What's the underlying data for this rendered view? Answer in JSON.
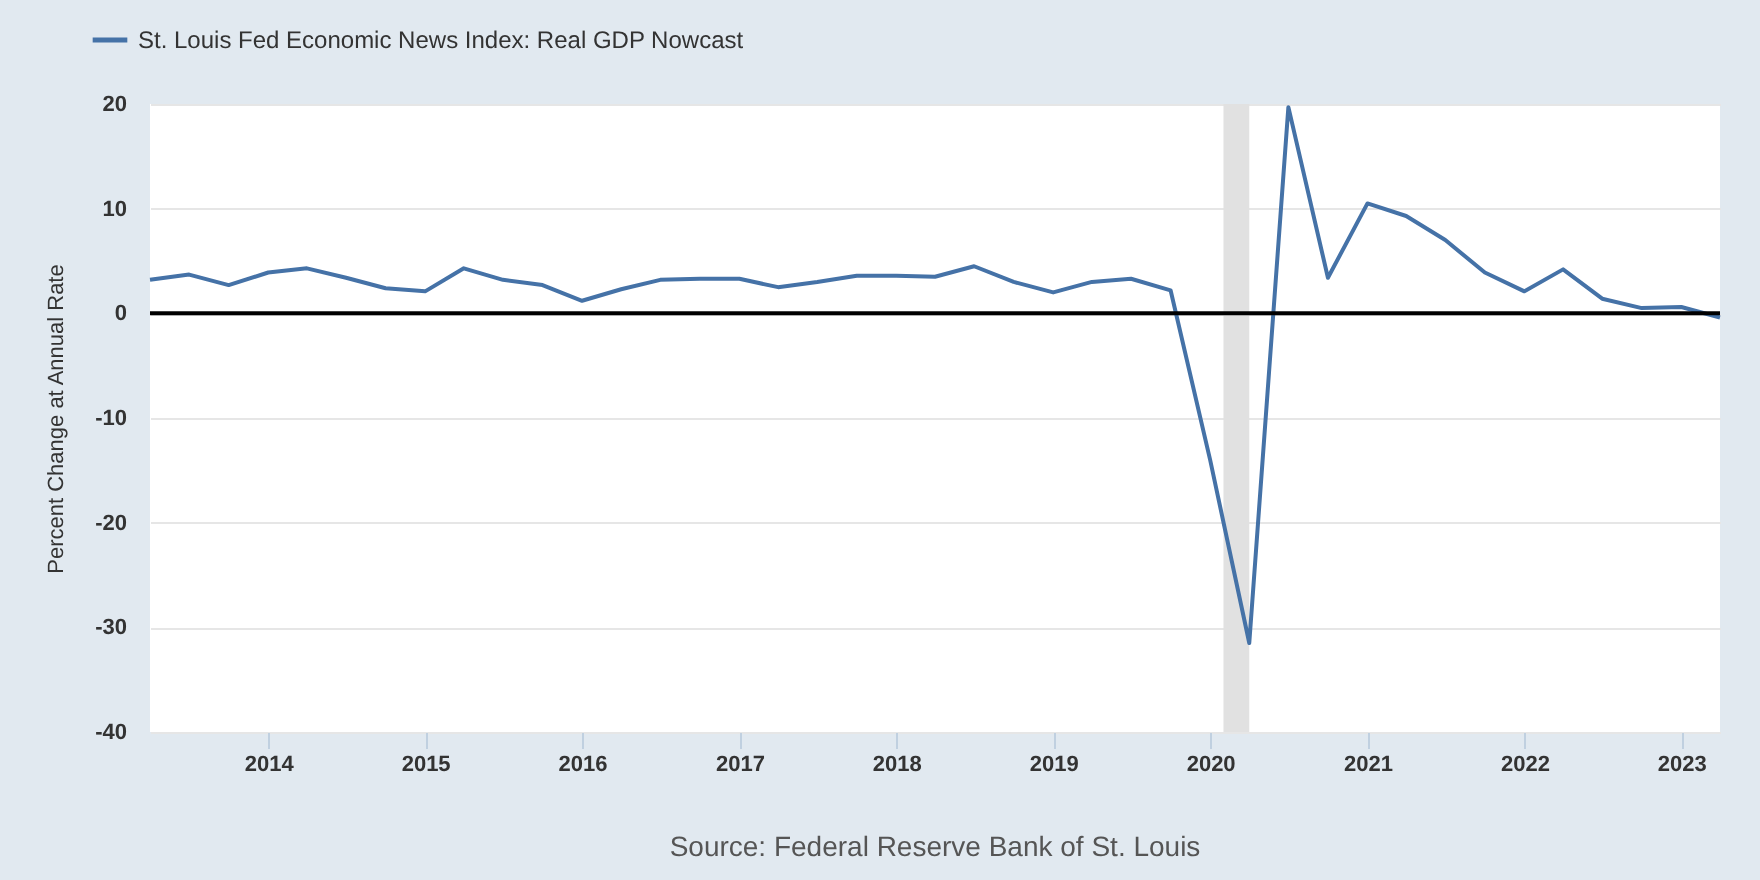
{
  "chart_data": {
    "type": "line",
    "ylabel": "Percent Change at Annual Rate",
    "x": [
      "2013-04-01",
      "2013-07-01",
      "2013-10-01",
      "2014-01-01",
      "2014-04-01",
      "2014-07-01",
      "2014-10-01",
      "2015-01-01",
      "2015-04-01",
      "2015-07-01",
      "2015-10-01",
      "2016-01-01",
      "2016-04-01",
      "2016-07-01",
      "2016-10-01",
      "2017-01-01",
      "2017-04-01",
      "2017-07-01",
      "2017-10-01",
      "2018-01-01",
      "2018-04-01",
      "2018-07-01",
      "2018-10-01",
      "2019-01-01",
      "2019-04-01",
      "2019-07-01",
      "2019-10-01",
      "2020-01-01",
      "2020-04-01",
      "2020-07-01",
      "2020-10-01",
      "2021-01-01",
      "2021-04-01",
      "2021-07-01",
      "2021-10-01",
      "2022-01-01",
      "2022-04-01",
      "2022-07-01",
      "2022-10-01",
      "2023-01-01",
      "2023-04-01"
    ],
    "series": [
      {
        "name": "St. Louis Fed Economic News Index: Real GDP Nowcast",
        "color": "#4572a7",
        "values": [
          3.2,
          3.7,
          2.7,
          3.9,
          4.3,
          3.4,
          2.4,
          2.1,
          4.3,
          3.2,
          2.7,
          1.2,
          2.3,
          3.2,
          3.3,
          3.3,
          2.5,
          3.0,
          3.6,
          3.6,
          3.5,
          4.5,
          3.0,
          2.0,
          3.0,
          3.3,
          2.2,
          -14,
          -31.5,
          19.7,
          3.4,
          10.5,
          9.3,
          7.0,
          3.9,
          2.1,
          4.2,
          1.4,
          0.5,
          0.6,
          -0.4
        ]
      }
    ],
    "xlim": [
      "2013-04-01",
      "2023-04-01"
    ],
    "xticks": [
      "2014",
      "2015",
      "2016",
      "2017",
      "2018",
      "2019",
      "2020",
      "2021",
      "2022",
      "2023"
    ],
    "ylim": [
      -40,
      20
    ],
    "yticks": [
      -40,
      -30,
      -20,
      -10,
      0,
      10,
      20
    ],
    "grid": "y",
    "legend": "top left",
    "ref_lines": [
      {
        "axis": "y",
        "value": 0,
        "color": "#000000"
      }
    ],
    "bands": [
      {
        "axis": "x",
        "from": "2020-02-01",
        "to": "2020-04-01",
        "color": "#e1e1e1"
      }
    ],
    "annotations": [
      "Source: Federal Reserve Bank of St. Louis"
    ]
  }
}
